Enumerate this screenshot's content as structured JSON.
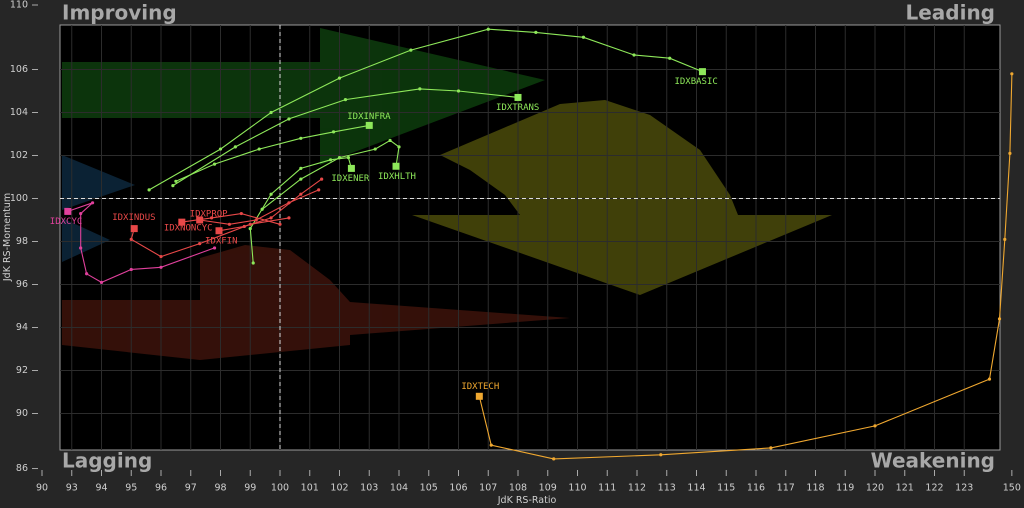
{
  "chart_data": {
    "type": "rrg",
    "x_label": "JdK RS-Ratio",
    "y_label": "JdK RS-Momentum",
    "quadrants": {
      "top_left": "Improving",
      "top_right": "Leading",
      "bottom_left": "Lagging",
      "bottom_right": "Weakening"
    },
    "xticks": [
      90,
      93,
      94,
      95,
      96,
      97,
      98,
      99,
      100,
      101,
      102,
      103,
      104,
      105,
      106,
      107,
      108,
      109,
      110,
      111,
      112,
      113,
      114,
      115,
      116,
      117,
      118,
      119,
      120,
      121,
      122,
      123,
      150
    ],
    "yticks": [
      110,
      106,
      104,
      102,
      100,
      98,
      96,
      94,
      92,
      90,
      86
    ],
    "xlim": [
      90,
      150
    ],
    "ylim": [
      86,
      110
    ],
    "reference_lines": {
      "x": 100,
      "y": 100
    },
    "grid": true,
    "series": [
      {
        "name": "IDXBASIC",
        "color": "#8ee85a",
        "x": [
          95.6,
          98.0,
          99.7,
          102.0,
          104.4,
          107.0,
          108.6,
          110.2,
          111.9,
          113.1,
          114.2
        ],
        "y": [
          100.4,
          102.3,
          104.0,
          105.6,
          107.2,
          108.5,
          108.3,
          108.0,
          106.9,
          106.7,
          105.9
        ]
      },
      {
        "name": "IDXTRANS",
        "color": "#8ee85a",
        "x": [
          96.4,
          98.5,
          100.3,
          102.2,
          104.7,
          106.0,
          108.0
        ],
        "y": [
          100.6,
          102.4,
          103.7,
          104.6,
          105.1,
          105.0,
          104.7
        ]
      },
      {
        "name": "IDXINFRA",
        "color": "#8ee85a",
        "x": [
          96.5,
          97.8,
          99.3,
          100.7,
          101.8,
          103.0
        ],
        "y": [
          100.8,
          101.6,
          102.3,
          102.8,
          103.1,
          103.4
        ]
      },
      {
        "name": "IDXENER",
        "color": "#8ee85a",
        "x": [
          99.1,
          99.0,
          99.7,
          100.7,
          101.7,
          102.3,
          102.4
        ],
        "y": [
          97.0,
          98.6,
          100.2,
          101.4,
          101.8,
          101.9,
          101.4
        ]
      },
      {
        "name": "IDXHLTH",
        "color": "#8ee85a",
        "x": [
          99.4,
          100.7,
          102.0,
          103.2,
          103.7,
          104.0,
          103.9
        ],
        "y": [
          99.5,
          100.9,
          101.9,
          102.3,
          102.7,
          102.4,
          101.5
        ]
      },
      {
        "name": "IDXCYC",
        "color": "#e0409c",
        "x": [
          97.8,
          96.0,
          95.0,
          94.0,
          93.5,
          93.3,
          93.3,
          93.7,
          92.6
        ],
        "y": [
          97.7,
          96.8,
          96.7,
          96.1,
          96.5,
          97.7,
          99.3,
          99.8,
          99.4
        ]
      },
      {
        "name": "IDXINDUS",
        "color": "#e84848",
        "x": [
          100.3,
          99.0,
          97.3,
          96.0,
          95.0,
          95.1
        ],
        "y": [
          99.1,
          98.8,
          97.9,
          97.3,
          98.1,
          98.6
        ]
      },
      {
        "name": "IDXNONCYC",
        "color": "#e84848",
        "x": [
          100.0,
          98.7,
          97.7,
          96.7
        ],
        "y": [
          98.8,
          99.3,
          99.1,
          98.9
        ]
      },
      {
        "name": "IDXPROP",
        "color": "#e84848",
        "x": [
          101.3,
          100.3,
          99.2,
          98.3,
          97.3
        ],
        "y": [
          100.4,
          99.8,
          99.0,
          98.8,
          99.0
        ]
      },
      {
        "name": "IDXFIN",
        "color": "#e84848",
        "x": [
          101.4,
          100.7,
          99.7,
          98.8,
          97.95
        ],
        "y": [
          100.9,
          100.2,
          99.1,
          98.7,
          98.5
        ]
      },
      {
        "name": "IDXTECH",
        "color": "#f0a830",
        "x": [
          150,
          148.9,
          146,
          143,
          137.3,
          120.0,
          116.5,
          112.8,
          109.2,
          107.1,
          106.7
        ],
        "y": [
          105.8,
          102.1,
          98.1,
          94.4,
          91.6,
          89.1,
          87.5,
          87.0,
          86.7,
          87.7,
          90.8
        ]
      }
    ]
  }
}
